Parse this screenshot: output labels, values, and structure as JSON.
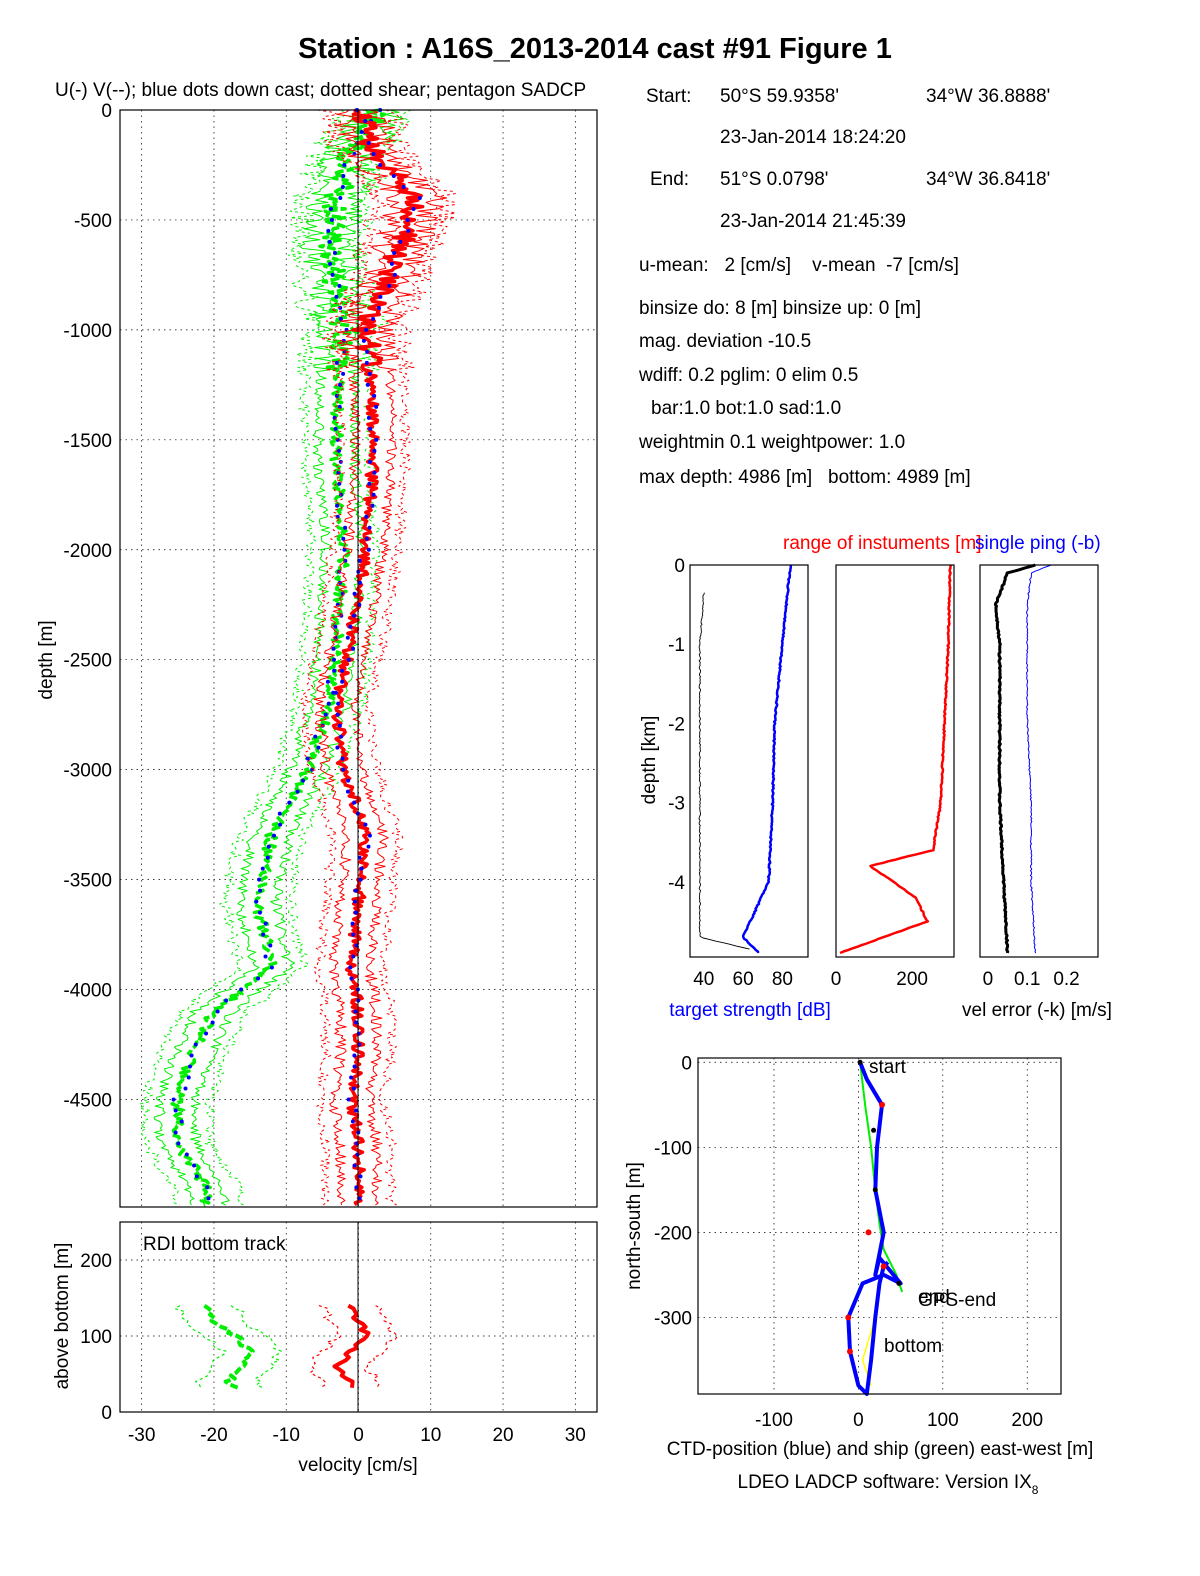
{
  "title": "Station : A16S_2013-2014 cast #91  Figure 1",
  "info": {
    "start_label": "Start:",
    "start_lat": "50°S 59.9358'",
    "start_lon": "34°W 36.8888'",
    "start_time": "23-Jan-2014 18:24:20",
    "end_label": "End:",
    "end_lat": "51°S  0.0798'",
    "end_lon": "34°W 36.8418'",
    "end_time": "23-Jan-2014 21:45:39",
    "means": "u-mean:   2 [cm/s]    v-mean  -7 [cm/s]",
    "binsize": "binsize do: 8 [m]  binsize up:  0 [m]",
    "magdev": "mag. deviation -10.5",
    "wdiff": "wdiff: 0.2  pglim: 0  elim 0.5",
    "bar": "bar:1.0 bot:1.0 sad:1.0",
    "weight": "weightmin 0.1  weightpower: 1.0",
    "depth": "max depth: 4986 [m]   bottom: 4989 [m]"
  },
  "footer": "LDEO LADCP software: Version IX",
  "footer_sub": "8",
  "colors": {
    "u": "#00ee00",
    "v": "#ff0000",
    "down": "#0000ff",
    "black": "#000000",
    "yellow": "#ffff00"
  },
  "chart_data": [
    {
      "id": "velocity_profile",
      "type": "line",
      "title": "U(-) V(--); blue dots down cast; dotted shear; pentagon SADCP",
      "xlabel": "",
      "ylabel": "depth [m]",
      "xlim": [
        -33,
        33
      ],
      "ylim": [
        -4989,
        0
      ],
      "xticks": [
        -30,
        -20,
        -10,
        0,
        10,
        20,
        30
      ],
      "yticks": [
        0,
        -500,
        -1000,
        -1500,
        -2000,
        -2500,
        -3000,
        -3500,
        -4000,
        -4500
      ],
      "grid": true,
      "series": [
        {
          "color": "green",
          "depth": [
            0,
            -200,
            -400,
            -600,
            -800,
            -1000,
            -1300,
            -1600,
            -2000,
            -2400,
            -2700,
            -3000,
            -3300,
            -3600,
            -3900,
            -4100,
            -4300,
            -4500,
            -4700,
            -4900
          ],
          "values": [
            3,
            -1,
            -3,
            -4,
            -3,
            -2,
            -3,
            -3,
            -2,
            -3,
            -4,
            -7,
            -12,
            -14,
            -12,
            -20,
            -23,
            -25,
            -25,
            -21
          ]
        },
        {
          "color": "red",
          "depth": [
            0,
            -200,
            -400,
            -600,
            -800,
            -1000,
            -1300,
            -1600,
            -2000,
            -2400,
            -2700,
            -3000,
            -3300,
            -3600,
            -3900,
            -4100,
            -4300,
            -4500,
            -4700,
            -4900
          ],
          "values": [
            0,
            2,
            8,
            6,
            4,
            1,
            2,
            2,
            1,
            -1,
            -3,
            -2,
            1,
            0,
            -1,
            0,
            0,
            -1,
            0,
            0
          ]
        }
      ]
    },
    {
      "id": "bottom_track",
      "type": "line",
      "title": "RDI bottom track",
      "xlabel": "velocity [cm/s]",
      "ylabel": "above bottom [m]",
      "xlim": [
        -33,
        33
      ],
      "ylim": [
        0,
        250
      ],
      "xticks": [
        -30,
        -20,
        -10,
        0,
        10,
        20,
        30
      ],
      "yticks": [
        0,
        100,
        200
      ],
      "grid": true,
      "series": [
        {
          "color": "green",
          "height": [
            140,
            120,
            100,
            80,
            60,
            40,
            30
          ],
          "values": [
            -21,
            -20,
            -17,
            -15,
            -16,
            -18,
            -17
          ]
        },
        {
          "color": "red",
          "height": [
            140,
            120,
            100,
            80,
            60,
            40,
            30
          ],
          "values": [
            -1,
            0,
            1,
            -1,
            -3,
            -1,
            -1
          ]
        }
      ]
    },
    {
      "id": "target_strength",
      "type": "line",
      "xlabel": "target strength [dB]",
      "ylabel": "depth [km]",
      "xlim": [
        33,
        93
      ],
      "ylim": [
        -4.95,
        0
      ],
      "xticks": [
        40,
        60,
        80
      ],
      "yticks": [
        0,
        -1,
        -2,
        -3,
        -4
      ],
      "series": [
        {
          "color": "black",
          "depth": [
            -0.35,
            -1,
            -2,
            -3,
            -4,
            -4.7,
            -4.85
          ],
          "values": [
            40,
            38,
            38,
            38,
            38,
            38,
            63
          ]
        },
        {
          "color": "blue",
          "depth": [
            0,
            -1,
            -2,
            -3,
            -4,
            -4.7,
            -4.9
          ],
          "values": [
            84,
            80,
            76,
            75,
            73,
            60,
            68
          ]
        }
      ]
    },
    {
      "id": "instrument_range",
      "type": "line",
      "title": "range of instuments [m]",
      "xlabel": "",
      "ylim": [
        -4.95,
        0
      ],
      "xlim": [
        0,
        310
      ],
      "xticks": [
        0,
        200
      ],
      "yticks": [
        0,
        -1,
        -2,
        -3,
        -4
      ],
      "series": [
        {
          "color": "red",
          "depth": [
            0,
            -1,
            -2,
            -3,
            -3.6,
            -3.8,
            -4.2,
            -4.5,
            -4.9
          ],
          "values": [
            300,
            295,
            285,
            275,
            255,
            90,
            210,
            240,
            10
          ]
        }
      ]
    },
    {
      "id": "velocity_error",
      "type": "line",
      "title": "single ping (-b)",
      "xlabel": "vel error (-k) [m/s]",
      "xlim": [
        -0.02,
        0.28
      ],
      "ylim": [
        -4.95,
        0
      ],
      "xticks": [
        0,
        0.1,
        0.2
      ],
      "yticks": [
        0,
        -1,
        -2,
        -3,
        -4
      ],
      "series": [
        {
          "color": "black",
          "depth": [
            0,
            -0.1,
            -0.5,
            -1,
            -2,
            -3,
            -4,
            -4.9
          ],
          "values": [
            0.12,
            0.05,
            0.02,
            0.03,
            0.03,
            0.03,
            0.04,
            0.05
          ]
        },
        {
          "color": "blue",
          "depth": [
            0,
            -0.1,
            -0.5,
            -1,
            -2,
            -3,
            -4,
            -4.9
          ],
          "values": [
            0.16,
            0.11,
            0.1,
            0.1,
            0.1,
            0.11,
            0.11,
            0.12
          ]
        }
      ]
    },
    {
      "id": "position",
      "type": "line",
      "xlabel": "CTD-position (blue) and ship (green) east-west [m]",
      "ylabel": "north-south [m]",
      "xlim": [
        -190,
        240
      ],
      "ylim": [
        -390,
        5
      ],
      "xticks": [
        -100,
        0,
        100,
        200
      ],
      "yticks": [
        0,
        -100,
        -200,
        -300
      ],
      "grid": true,
      "annotations": [
        "start",
        "end",
        "GPS-end",
        "bottom"
      ],
      "series": [
        {
          "color": "blue",
          "x": [
            2,
            10,
            28,
            22,
            20,
            30,
            20,
            25,
            50,
            40,
            30,
            5,
            -12,
            -10,
            0,
            10,
            15,
            20,
            25,
            30,
            35
          ],
          "y": [
            0,
            -20,
            -50,
            -100,
            -150,
            -200,
            -250,
            -230,
            -260,
            -255,
            -250,
            -260,
            -300,
            -340,
            -380,
            -390,
            -350,
            -300,
            -260,
            -240,
            -235
          ]
        },
        {
          "color": "green",
          "x": [
            2,
            8,
            15,
            20,
            25,
            30,
            40,
            45,
            48,
            52
          ],
          "y": [
            0,
            -50,
            -100,
            -150,
            -190,
            -220,
            -240,
            -250,
            -260,
            -270
          ]
        }
      ]
    }
  ]
}
